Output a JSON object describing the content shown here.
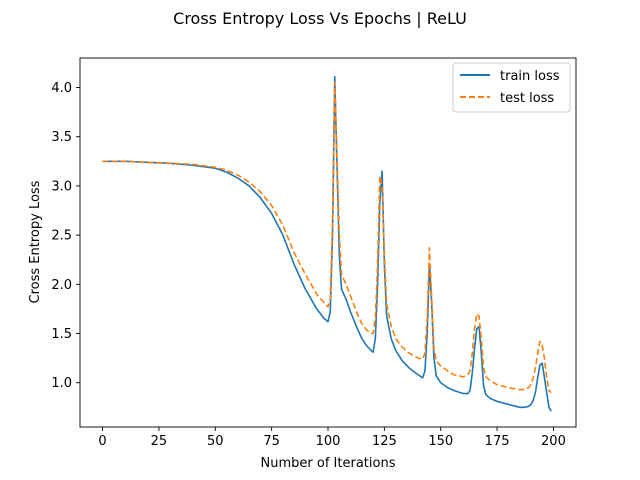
{
  "chart_data": {
    "type": "line",
    "title": "Cross Entropy Loss Vs Epochs | ReLU",
    "xlabel": "Number of Iterations",
    "ylabel": "Cross Entropy Loss",
    "xlim": [
      -10,
      210
    ],
    "ylim": [
      0.55,
      4.3
    ],
    "xticks": [
      0,
      25,
      50,
      75,
      100,
      125,
      150,
      175,
      200
    ],
    "yticks": [
      1.0,
      1.5,
      2.0,
      2.5,
      3.0,
      3.5,
      4.0
    ],
    "xtick_labels": [
      "0",
      "25",
      "50",
      "75",
      "100",
      "125",
      "150",
      "175",
      "200"
    ],
    "ytick_labels": [
      "1.0",
      "1.5",
      "2.0",
      "2.5",
      "3.0",
      "3.5",
      "4.0"
    ],
    "grid": false,
    "legend_position": "top-right",
    "colors": {
      "train": "#1f77b4",
      "test": "#ff7f0e"
    },
    "series": [
      {
        "name": "train loss",
        "style": "solid",
        "x": [
          0,
          10,
          20,
          30,
          40,
          50,
          55,
          60,
          65,
          70,
          75,
          80,
          85,
          90,
          95,
          98,
          100,
          101,
          102,
          103,
          104,
          105,
          106,
          108,
          110,
          113,
          115,
          117,
          119,
          120,
          121,
          122,
          123,
          124,
          125,
          126,
          128,
          130,
          133,
          136,
          140,
          142,
          143,
          144,
          145,
          146,
          147,
          148,
          150,
          153,
          156,
          160,
          162,
          163,
          164,
          165,
          166,
          167,
          168,
          169,
          170,
          172,
          175,
          180,
          185,
          187,
          189,
          190,
          191,
          192,
          193,
          194,
          195,
          196,
          197,
          198,
          199
        ],
        "y": [
          3.25,
          3.25,
          3.24,
          3.23,
          3.21,
          3.18,
          3.14,
          3.08,
          3.0,
          2.88,
          2.72,
          2.5,
          2.2,
          1.95,
          1.75,
          1.66,
          1.62,
          1.72,
          2.5,
          4.11,
          3.2,
          2.3,
          1.95,
          1.85,
          1.72,
          1.55,
          1.45,
          1.38,
          1.33,
          1.31,
          1.45,
          2.0,
          2.85,
          3.15,
          2.2,
          1.68,
          1.45,
          1.33,
          1.22,
          1.15,
          1.08,
          1.05,
          1.12,
          1.5,
          2.2,
          1.8,
          1.25,
          1.07,
          1.0,
          0.95,
          0.92,
          0.89,
          0.89,
          0.92,
          1.1,
          1.35,
          1.55,
          1.57,
          1.3,
          0.97,
          0.88,
          0.84,
          0.81,
          0.78,
          0.75,
          0.75,
          0.76,
          0.78,
          0.82,
          0.9,
          1.05,
          1.18,
          1.2,
          1.05,
          0.9,
          0.75,
          0.71
        ]
      },
      {
        "name": "test loss",
        "style": "dashed",
        "x": [
          0,
          10,
          20,
          30,
          40,
          50,
          55,
          60,
          65,
          70,
          75,
          80,
          85,
          90,
          95,
          98,
          100,
          101,
          102,
          103,
          104,
          105,
          106,
          108,
          110,
          113,
          115,
          117,
          119,
          120,
          121,
          122,
          123,
          124,
          125,
          126,
          128,
          130,
          133,
          136,
          140,
          142,
          143,
          144,
          145,
          146,
          147,
          148,
          150,
          153,
          156,
          160,
          162,
          163,
          164,
          165,
          166,
          167,
          168,
          169,
          170,
          172,
          175,
          180,
          185,
          187,
          189,
          190,
          191,
          192,
          193,
          194,
          195,
          196,
          197,
          198,
          199
        ],
        "y": [
          3.25,
          3.25,
          3.24,
          3.23,
          3.22,
          3.19,
          3.16,
          3.11,
          3.04,
          2.94,
          2.8,
          2.6,
          2.32,
          2.1,
          1.9,
          1.82,
          1.77,
          1.85,
          2.6,
          4.05,
          3.3,
          2.5,
          2.1,
          2.0,
          1.88,
          1.7,
          1.6,
          1.54,
          1.5,
          1.5,
          1.65,
          2.2,
          3.1,
          3.0,
          2.3,
          1.8,
          1.58,
          1.45,
          1.36,
          1.3,
          1.25,
          1.24,
          1.3,
          1.65,
          2.37,
          1.85,
          1.35,
          1.22,
          1.17,
          1.12,
          1.08,
          1.06,
          1.08,
          1.12,
          1.3,
          1.55,
          1.7,
          1.68,
          1.45,
          1.15,
          1.06,
          1.02,
          0.98,
          0.95,
          0.93,
          0.93,
          0.95,
          0.98,
          1.05,
          1.15,
          1.3,
          1.42,
          1.38,
          1.25,
          1.05,
          0.92,
          0.9
        ]
      }
    ]
  }
}
